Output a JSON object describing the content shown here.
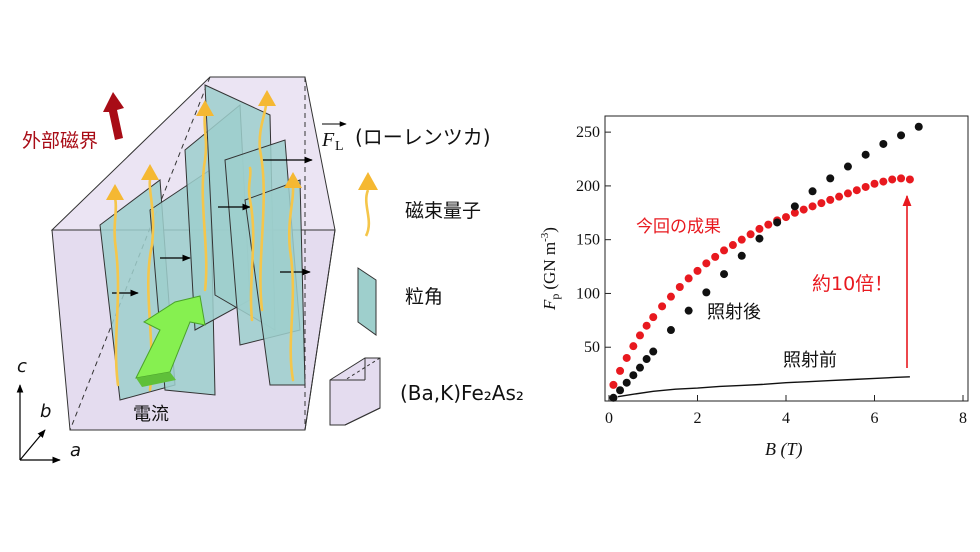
{
  "diagram": {
    "external_field_label": "外部磁界",
    "lorentz_label": "(ローレンツカ)",
    "force_symbol": "F",
    "force_subscript": "L",
    "legend_flux": "磁束量子",
    "legend_grain": "粒角",
    "legend_crystal": "(Ba,K)Fe₂As₂",
    "current_label": "電流",
    "axis_c": "c",
    "axis_b": "b",
    "axis_a": "a",
    "colors": {
      "field_arrow": "#a80c16",
      "flux": "#f5c64a",
      "grain": "#9ecfcc",
      "box": "#e4dcef",
      "current": "#86f050"
    }
  },
  "chart_data": {
    "type": "scatter",
    "xlabel": "B (T)",
    "ylabel_main": "F",
    "ylabel_sub": "p",
    "ylabel_unit": "(GN m",
    "ylabel_exp": "-3",
    "ylabel_close": ")",
    "xlim": [
      0,
      8
    ],
    "ylim": [
      0,
      265
    ],
    "xticks": [
      0,
      2,
      4,
      6,
      8
    ],
    "yticks": [
      50,
      100,
      150,
      200,
      250
    ],
    "annotations": {
      "this_result": "今回の成果",
      "after_irradiation": "照射後",
      "before_irradiation": "照射前",
      "improvement": "約10倍！"
    },
    "series": [
      {
        "color": "#e8191f",
        "x": [
          0.1,
          0.25,
          0.4,
          0.55,
          0.7,
          0.85,
          1.0,
          1.2,
          1.4,
          1.6,
          1.8,
          2.0,
          2.2,
          2.4,
          2.6,
          2.8,
          3.0,
          3.2,
          3.4,
          3.6,
          3.8,
          4.0,
          4.2,
          4.4,
          4.6,
          4.8,
          5.0,
          5.2,
          5.4,
          5.6,
          5.8,
          6.0,
          6.2,
          6.4,
          6.6,
          6.8
        ],
        "values": [
          15,
          28,
          40,
          51,
          61,
          70,
          78,
          88,
          97,
          106,
          114,
          121,
          128,
          134,
          140,
          145,
          150,
          155,
          160,
          164,
          168,
          171,
          175,
          178,
          181,
          184,
          187,
          190,
          193,
          196,
          199,
          202,
          204,
          206,
          207,
          206
        ]
      },
      {
        "color": "#111111",
        "x": [
          0.1,
          0.25,
          0.4,
          0.55,
          0.7,
          0.85,
          1.0,
          1.4,
          1.8,
          2.2,
          2.6,
          3.0,
          3.4,
          3.8,
          4.2,
          4.6,
          5.0,
          5.4,
          5.8,
          6.2,
          6.6,
          7.0
        ],
        "values": [
          3,
          10,
          17,
          24,
          31,
          39,
          46,
          66,
          84,
          101,
          118,
          135,
          151,
          166,
          181,
          195,
          207,
          218,
          229,
          239,
          247,
          255
        ]
      },
      {
        "color": "#111111",
        "style": "line",
        "x": [
          0.2,
          0.5,
          1.0,
          1.5,
          2.0,
          2.5,
          3.0,
          3.5,
          4.0,
          4.5,
          5.0,
          5.5,
          6.0,
          6.5,
          6.8
        ],
        "values": [
          4,
          6,
          9,
          11,
          12,
          13.5,
          14.5,
          15.5,
          17,
          18,
          19,
          20,
          21,
          22,
          22.5
        ]
      }
    ]
  }
}
